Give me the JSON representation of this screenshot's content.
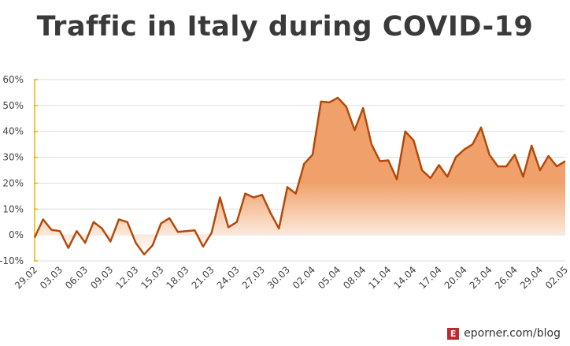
{
  "chart_data": {
    "type": "area",
    "title": "Traffic in Italy during COVID-19",
    "xlabel": "",
    "ylabel": "",
    "ylim": [
      -10,
      60
    ],
    "yticks": [
      "-10%",
      "0%",
      "10%",
      "20%",
      "30%",
      "40%",
      "50%",
      "60%"
    ],
    "ytick_values": [
      -10,
      0,
      10,
      20,
      30,
      40,
      50,
      60
    ],
    "x_tick_labels": [
      "29.02",
      "03.03",
      "06.03",
      "09.03",
      "12.03",
      "15.03",
      "18.03",
      "21.03",
      "24.03",
      "27.03",
      "30.03",
      "02.04",
      "05.04",
      "08.04",
      "11.04",
      "14.04",
      "17.04",
      "20.04",
      "23.04",
      "26.04",
      "29.04",
      "02.05"
    ],
    "x_tick_every": 3,
    "grid": true,
    "values": [
      -1,
      6,
      2,
      1.5,
      -5,
      1.5,
      -3,
      5,
      2.5,
      -2.5,
      6,
      5,
      -3,
      -7.5,
      -4,
      4.5,
      6.5,
      1.2,
      1.5,
      1.8,
      -4.5,
      0.8,
      14.5,
      3,
      5,
      16,
      14.5,
      15.5,
      8.5,
      2.5,
      18.5,
      16,
      27.5,
      31,
      51.5,
      51.2,
      53,
      49.5,
      40.5,
      49,
      35,
      28.5,
      28.8,
      21.5,
      40,
      36.5,
      25,
      22,
      27,
      22.5,
      30,
      33,
      35,
      41.5,
      31,
      26.5,
      26.5,
      31,
      22.5,
      34.5,
      25,
      30.5,
      26.5,
      28.5
    ],
    "colors": {
      "line": "#b34a0a",
      "fill": "#f0a06a",
      "axis": "#f0b400"
    }
  },
  "footer": {
    "logo_letter": "E",
    "text": "eporner.com/blog"
  }
}
